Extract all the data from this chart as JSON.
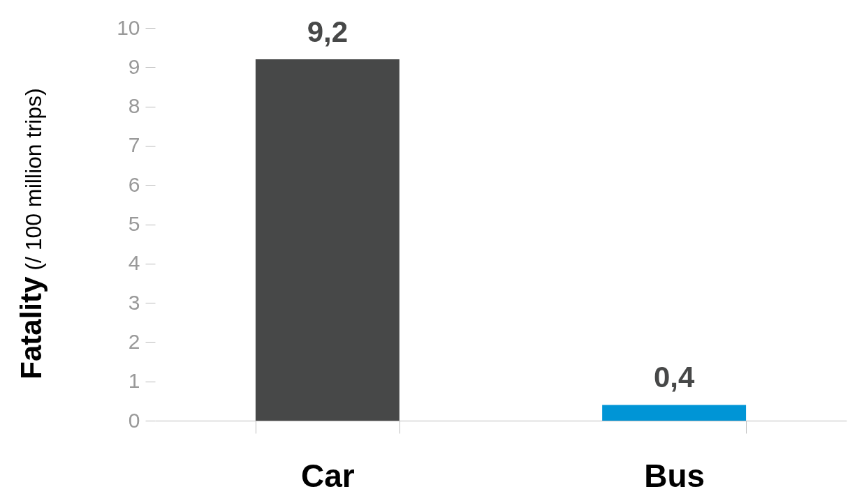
{
  "chart_data": {
    "type": "bar",
    "categories": [
      "Car",
      "Bus"
    ],
    "values": [
      9.2,
      0.4
    ],
    "colors": [
      "#474848",
      "#0095d6"
    ],
    "value_labels": [
      "9,2",
      "0,4"
    ],
    "ylabel": "Fatality (/ 100 million trips)",
    "ylim": [
      0,
      10
    ],
    "yticks": [
      0,
      1,
      2,
      3,
      4,
      5,
      6,
      7,
      8,
      9,
      10
    ]
  }
}
